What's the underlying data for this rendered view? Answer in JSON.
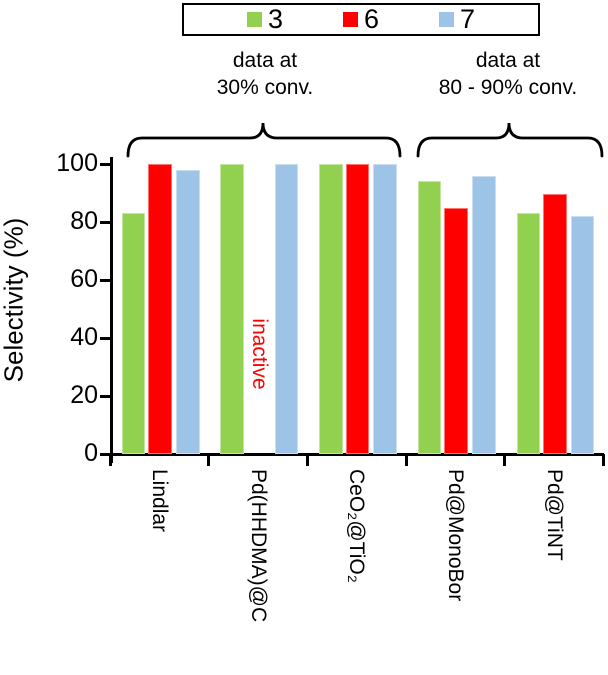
{
  "chart_data": {
    "type": "bar",
    "title": "",
    "ylabel": "Selectivity (%)",
    "ylim": [
      0,
      100
    ],
    "yticks": [
      0,
      20,
      40,
      60,
      80,
      100
    ],
    "grid": false,
    "legend_position": "top",
    "categories": [
      "Lindlar",
      "Pd(HHDMA)@C",
      "CeO₂@TiO₂",
      "Pd@MonoBor",
      "Pd@TiNT"
    ],
    "series": [
      {
        "name": "3",
        "color": "#92D050",
        "values": [
          83,
          100,
          100,
          94,
          83
        ]
      },
      {
        "name": "6",
        "color": "#FF0000",
        "values": [
          100,
          null,
          100,
          85,
          89.5
        ]
      },
      {
        "name": "7",
        "color": "#9DC3E6",
        "values": [
          98,
          100,
          100,
          96,
          82
        ]
      }
    ]
  },
  "legend": {
    "items": [
      {
        "label": "3",
        "color": "#92D050"
      },
      {
        "label": "6",
        "color": "#FF0000"
      },
      {
        "label": "7",
        "color": "#9DC3E6"
      }
    ]
  },
  "conversion_notes": [
    {
      "line1": "data at",
      "line2": "30% conv.",
      "applies_to": [
        "Lindlar",
        "Pd(HHDMA)@C",
        "CeO₂@TiO₂"
      ]
    },
    {
      "line1": "data at",
      "line2": "80 - 90% conv.",
      "applies_to": [
        "Pd@MonoBor",
        "Pd@TiNT"
      ]
    }
  ],
  "annotations": {
    "inactive_label": "inactive",
    "inactive_color": "#FF0000",
    "inactive_category": "Pd(HHDMA)@C",
    "inactive_series": "6"
  }
}
